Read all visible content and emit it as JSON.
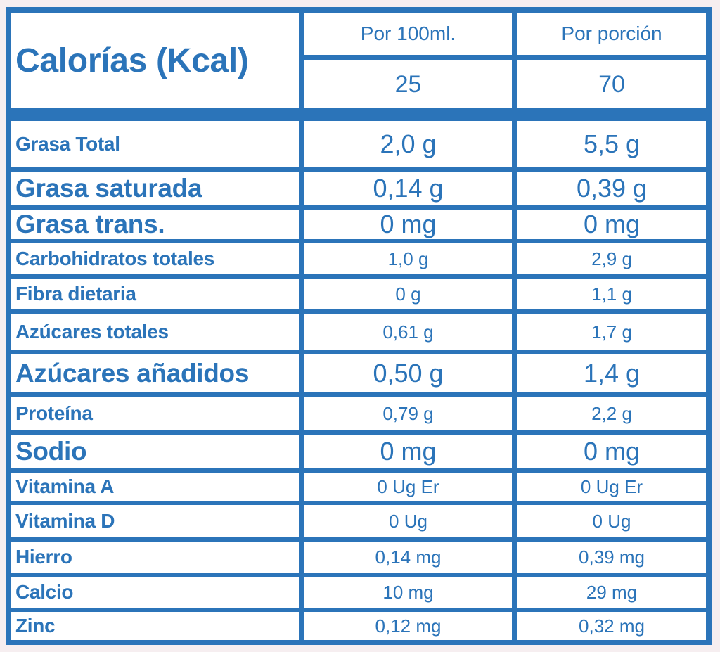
{
  "header": {
    "label": "Calorías (Kcal)",
    "columns": [
      "Por 100ml.",
      "Por porción"
    ],
    "values": [
      "25",
      "70"
    ]
  },
  "rows": [
    {
      "label": "Grasa Total",
      "values": [
        "2,0 g",
        "5,5 g"
      ]
    },
    {
      "label": "Grasa saturada",
      "values": [
        "0,14 g",
        "0,39 g"
      ]
    },
    {
      "label": "Grasa trans.",
      "values": [
        "0 mg",
        "0 mg"
      ]
    },
    {
      "label": "Carbohidratos totales",
      "values": [
        "1,0 g",
        "2,9 g"
      ]
    },
    {
      "label": "Fibra dietaria",
      "values": [
        "0 g",
        "1,1 g"
      ]
    },
    {
      "label": "Azúcares totales",
      "values": [
        "0,61 g",
        "1,7 g"
      ]
    },
    {
      "label": "Azúcares añadidos",
      "values": [
        "0,50 g",
        "1,4 g"
      ]
    },
    {
      "label": "Proteína",
      "values": [
        "0,79 g",
        "2,2 g"
      ]
    },
    {
      "label": "Sodio",
      "values": [
        "0 mg",
        "0 mg"
      ]
    },
    {
      "label": "Vitamina A",
      "values": [
        "0 Ug Er",
        "0 Ug Er"
      ]
    },
    {
      "label": "Vitamina D",
      "values": [
        "0 Ug",
        "0 Ug"
      ]
    },
    {
      "label": "Hierro",
      "values": [
        "0,14 mg",
        "0,39 mg"
      ]
    },
    {
      "label": "Calcio",
      "values": [
        "10 mg",
        "29 mg"
      ]
    },
    {
      "label": "Zinc",
      "values": [
        "0,12 mg",
        "0,32 mg"
      ]
    }
  ]
}
